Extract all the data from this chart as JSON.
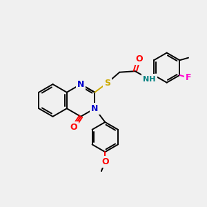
{
  "background_color": "#f0f0f0",
  "bond_color": "#000000",
  "N_color": "#0000cc",
  "O_color": "#ff0000",
  "S_color": "#ccaa00",
  "F_color": "#ff00cc",
  "H_color": "#008080",
  "lw": 1.4,
  "fs": 9,
  "xlim": [
    0,
    10
  ],
  "ylim": [
    0,
    10
  ]
}
